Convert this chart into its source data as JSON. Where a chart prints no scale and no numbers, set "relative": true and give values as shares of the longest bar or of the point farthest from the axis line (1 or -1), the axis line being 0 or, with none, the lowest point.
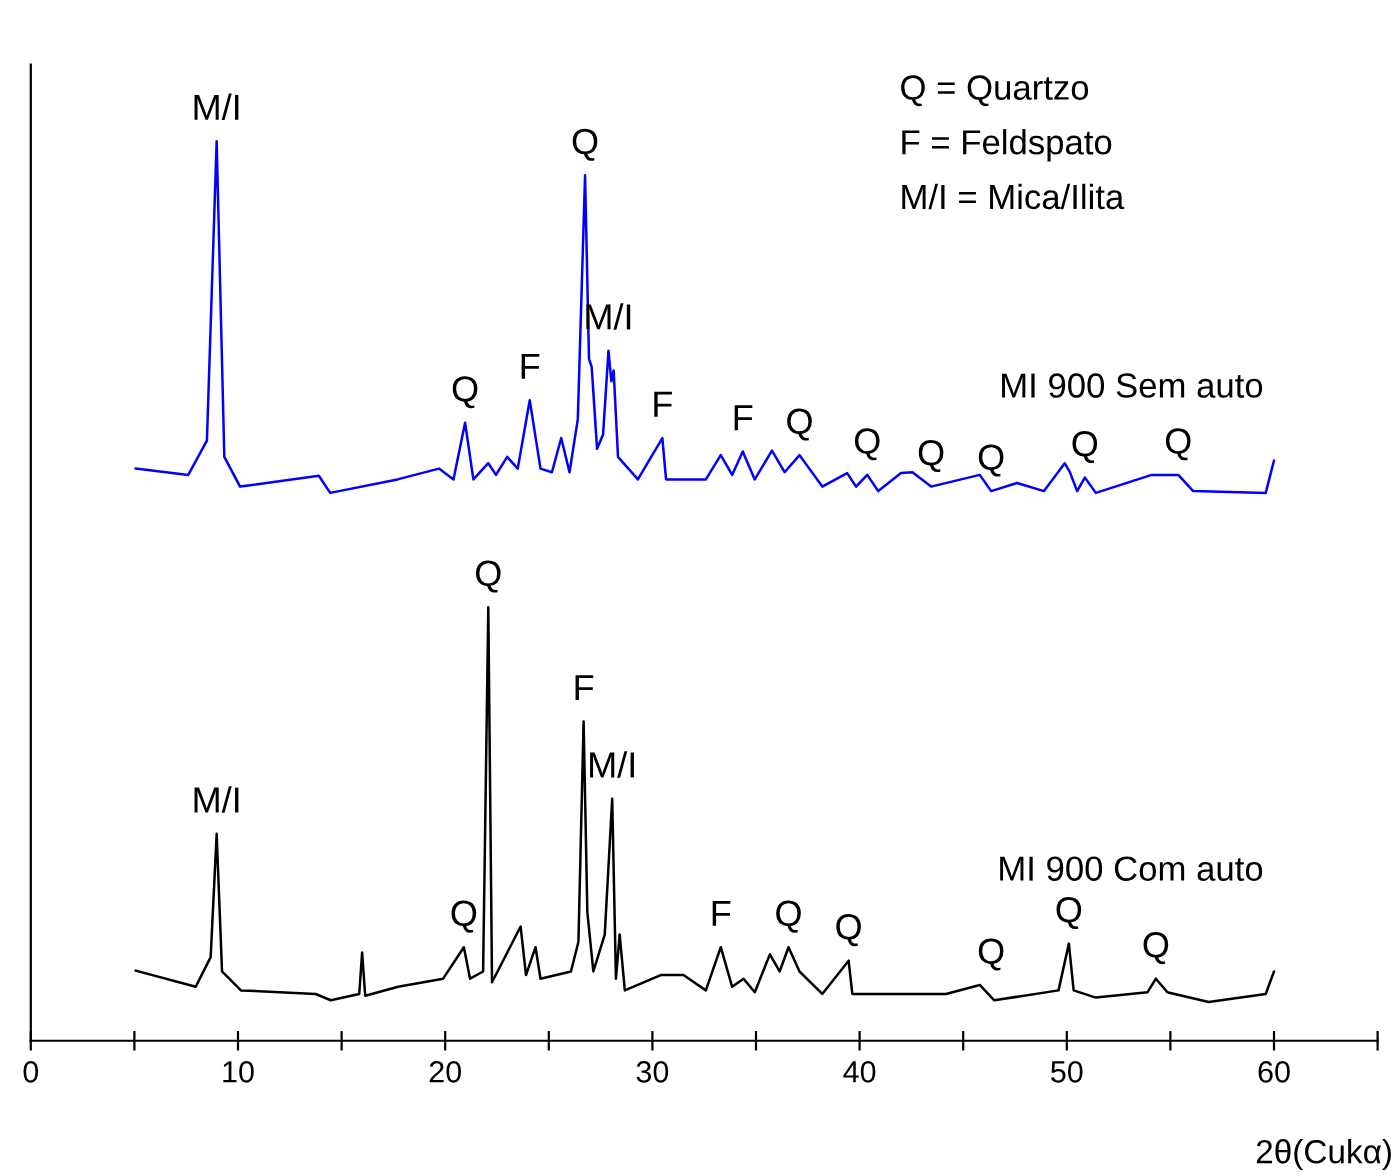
{
  "chart_data": {
    "type": "line",
    "relative": true,
    "xlabel": "2θ(Cukα)",
    "xlim": [
      0,
      65
    ],
    "xticks": [
      0,
      {
        "value": 5,
        "label": null
      },
      10,
      {
        "value": 15,
        "label": null
      },
      20,
      {
        "value": 25,
        "label": null
      },
      30,
      {
        "value": 35,
        "label": null
      },
      40,
      {
        "value": 45,
        "label": null
      },
      50,
      {
        "value": 55,
        "label": null
      },
      60,
      {
        "value": 65,
        "label": null
      }
    ],
    "tick_labels": "x",
    "grid": false,
    "legend": false,
    "series": [
      {
        "name": "MI 900 Sem auto",
        "color": "#0000ff",
        "x": [
          5.06,
          7.6,
          8.5,
          8.97,
          9.34,
          10.1,
          13.9,
          14.45,
          17.7,
          19.7,
          20.4,
          20.96,
          21.36,
          22.08,
          22.45,
          22.99,
          23.5,
          24.08,
          24.6,
          25.15,
          25.6,
          26.0,
          26.4,
          26.75,
          26.94,
          27.07,
          27.33,
          27.62,
          27.88,
          28.02,
          28.13,
          28.34,
          29.3,
          30.48,
          30.66,
          32.58,
          33.3,
          33.85,
          34.36,
          34.94,
          35.77,
          36.38,
          37.1,
          38.2,
          39.4,
          39.83,
          40.37,
          40.9,
          42.0,
          42.55,
          43.45,
          45.8,
          46.35,
          47.6,
          48.9,
          49.9,
          50.15,
          50.5,
          50.87,
          51.4,
          54.1,
          55.38,
          56.1,
          59.6,
          60.0
        ],
        "values": [
          0.636,
          0.629,
          0.667,
          1.0,
          0.649,
          0.616,
          0.628,
          0.609,
          0.624,
          0.636,
          0.624,
          0.687,
          0.624,
          0.642,
          0.629,
          0.649,
          0.636,
          0.712,
          0.636,
          0.632,
          0.67,
          0.632,
          0.691,
          0.962,
          0.758,
          0.749,
          0.658,
          0.674,
          0.767,
          0.733,
          0.745,
          0.649,
          0.624,
          0.67,
          0.624,
          0.624,
          0.651,
          0.629,
          0.655,
          0.624,
          0.656,
          0.632,
          0.651,
          0.616,
          0.631,
          0.616,
          0.629,
          0.611,
          0.631,
          0.632,
          0.616,
          0.629,
          0.611,
          0.62,
          0.611,
          0.642,
          0.632,
          0.611,
          0.626,
          0.609,
          0.629,
          0.629,
          0.611,
          0.609,
          0.645
        ]
      },
      {
        "name": "MI 900 Com auto",
        "color": "#000000",
        "x": [
          5.06,
          7.96,
          8.68,
          8.97,
          9.23,
          10.14,
          13.75,
          14.48,
          15.85,
          15.99,
          16.14,
          17.73,
          19.9,
          20.9,
          21.2,
          21.83,
          22.08,
          22.26,
          23.64,
          23.9,
          24.36,
          24.6,
          26.07,
          26.43,
          26.68,
          26.86,
          27.15,
          27.7,
          28.06,
          28.24,
          28.42,
          28.67,
          30.4,
          31.5,
          32.58,
          33.3,
          33.85,
          34.4,
          34.94,
          35.67,
          36.14,
          36.57,
          37.1,
          38.2,
          39.47,
          39.65,
          40.9,
          44.17,
          45.8,
          46.5,
          49.6,
          50.1,
          50.33,
          51.4,
          53.9,
          54.3,
          54.85,
          56.85,
          59.6,
          60.0
        ],
        "values": [
          0.078,
          0.06,
          0.093,
          0.23,
          0.077,
          0.056,
          0.052,
          0.045,
          0.052,
          0.098,
          0.05,
          0.06,
          0.069,
          0.104,
          0.069,
          0.077,
          0.482,
          0.065,
          0.127,
          0.073,
          0.104,
          0.069,
          0.077,
          0.11,
          0.355,
          0.143,
          0.077,
          0.118,
          0.269,
          0.069,
          0.118,
          0.056,
          0.073,
          0.073,
          0.056,
          0.104,
          0.06,
          0.069,
          0.054,
          0.096,
          0.077,
          0.104,
          0.077,
          0.052,
          0.089,
          0.052,
          0.052,
          0.052,
          0.062,
          0.045,
          0.056,
          0.108,
          0.056,
          0.048,
          0.054,
          0.069,
          0.054,
          0.043,
          0.052,
          0.077
        ]
      }
    ],
    "annotations": [
      "Q = Quartzo",
      "F = Feldspato",
      "M/I = Mica/Ilita",
      {
        "text": "M/I",
        "x": 8.97,
        "y": 1.0
      },
      {
        "text": "Q",
        "x": 20.96,
        "y": 0.687
      },
      {
        "text": "F",
        "x": 24.08,
        "y": 0.712
      },
      {
        "text": "Q",
        "x": 26.75,
        "y": 0.962
      },
      {
        "text": "M/I",
        "x": 27.88,
        "y": 0.767
      },
      {
        "text": "F",
        "x": 30.48,
        "y": 0.67
      },
      {
        "text": "F",
        "x": 34.36,
        "y": 0.655
      },
      {
        "text": "Q",
        "x": 37.1,
        "y": 0.651
      },
      {
        "text": "Q",
        "x": 40.37,
        "y": 0.629
      },
      {
        "text": "Q",
        "x": 43.45,
        "y": 0.616
      },
      {
        "text": "Q",
        "x": 46.35,
        "y": 0.611
      },
      {
        "text": "Q",
        "x": 50.87,
        "y": 0.626
      },
      {
        "text": "Q",
        "x": 55.38,
        "y": 0.629
      },
      {
        "text": "M/I",
        "x": 8.97,
        "y": 0.23
      },
      {
        "text": "Q",
        "x": 20.9,
        "y": 0.104
      },
      {
        "text": "Q",
        "x": 22.08,
        "y": 0.482
      },
      {
        "text": "F",
        "x": 26.68,
        "y": 0.355
      },
      {
        "text": "M/I",
        "x": 28.06,
        "y": 0.269
      },
      {
        "text": "F",
        "x": 33.3,
        "y": 0.104
      },
      {
        "text": "Q",
        "x": 36.57,
        "y": 0.104
      },
      {
        "text": "Q",
        "x": 39.47,
        "y": 0.089
      },
      {
        "text": "Q",
        "x": 46.35,
        "y": 0.062
      },
      {
        "text": "Q",
        "x": 50.1,
        "y": 0.108
      },
      {
        "text": "Q",
        "x": 54.3,
        "y": 0.069
      }
    ]
  }
}
